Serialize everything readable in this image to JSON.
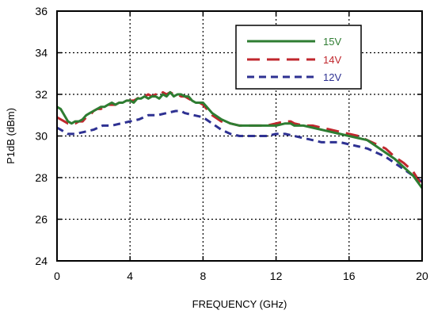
{
  "chart_data": {
    "type": "line",
    "xlabel": "FREQUENCY (GHz)",
    "ylabel": "P1dB (dBm)",
    "xlim": [
      0,
      20
    ],
    "ylim": [
      24,
      36
    ],
    "xticks": [
      0,
      4,
      8,
      12,
      16,
      20
    ],
    "yticks": [
      24,
      26,
      28,
      30,
      32,
      34,
      36
    ],
    "grid": "dotted",
    "legend_position": "top-right",
    "series": [
      {
        "name": "15V",
        "color": "#2e7d32",
        "dash": "solid",
        "x": [
          0,
          0.2,
          0.4,
          0.6,
          0.8,
          1.0,
          1.2,
          1.4,
          1.6,
          1.8,
          2.0,
          2.2,
          2.4,
          2.6,
          2.8,
          3.0,
          3.2,
          3.4,
          3.6,
          3.8,
          4.0,
          4.2,
          4.4,
          4.6,
          4.8,
          5.0,
          5.2,
          5.4,
          5.6,
          5.8,
          6.0,
          6.2,
          6.4,
          6.6,
          6.8,
          7.0,
          7.2,
          7.4,
          7.6,
          7.8,
          8.0,
          8.5,
          9.0,
          9.5,
          10.0,
          10.5,
          11.0,
          11.5,
          12.0,
          12.5,
          12.8,
          13.0,
          13.5,
          14.0,
          14.5,
          15.0,
          15.5,
          16.0,
          16.5,
          17.0,
          17.5,
          18.0,
          18.5,
          19.0,
          19.5,
          20.0
        ],
        "y": [
          31.4,
          31.3,
          31.0,
          30.7,
          30.6,
          30.7,
          30.7,
          30.8,
          31.0,
          31.1,
          31.2,
          31.3,
          31.4,
          31.4,
          31.5,
          31.6,
          31.5,
          31.6,
          31.6,
          31.7,
          31.7,
          31.6,
          31.8,
          31.8,
          31.9,
          31.8,
          31.9,
          31.9,
          31.8,
          32.0,
          31.9,
          32.1,
          31.9,
          32.0,
          32.0,
          31.9,
          31.9,
          31.7,
          31.6,
          31.6,
          31.6,
          31.1,
          30.8,
          30.6,
          30.5,
          30.5,
          30.5,
          30.5,
          30.5,
          30.6,
          30.6,
          30.5,
          30.5,
          30.4,
          30.3,
          30.2,
          30.1,
          30.0,
          29.9,
          29.8,
          29.5,
          29.2,
          28.9,
          28.5,
          28.1,
          27.5
        ]
      },
      {
        "name": "14V",
        "color": "#c0272d",
        "dash": "long-dash",
        "x": [
          0,
          0.2,
          0.4,
          0.6,
          0.8,
          1.0,
          1.2,
          1.4,
          1.6,
          1.8,
          2.0,
          2.2,
          2.4,
          2.6,
          2.8,
          3.0,
          3.2,
          3.4,
          3.6,
          3.8,
          4.0,
          4.2,
          4.4,
          4.6,
          4.8,
          5.0,
          5.2,
          5.4,
          5.6,
          5.8,
          6.0,
          6.2,
          6.4,
          6.6,
          6.8,
          7.0,
          7.2,
          7.4,
          7.6,
          7.8,
          8.0,
          8.5,
          9.0,
          9.5,
          10.0,
          10.5,
          11.0,
          11.5,
          12.0,
          12.5,
          12.8,
          13.0,
          13.5,
          14.0,
          14.5,
          15.0,
          15.5,
          16.0,
          16.5,
          17.0,
          17.5,
          18.0,
          18.5,
          19.0,
          19.5,
          20.0
        ],
        "y": [
          30.9,
          30.8,
          30.7,
          30.6,
          30.6,
          30.6,
          30.7,
          30.7,
          30.9,
          31.0,
          31.2,
          31.3,
          31.3,
          31.4,
          31.5,
          31.5,
          31.5,
          31.6,
          31.6,
          31.7,
          31.7,
          31.7,
          31.8,
          31.9,
          31.9,
          32.0,
          31.9,
          32.0,
          31.9,
          32.1,
          32.0,
          32.1,
          32.0,
          32.0,
          31.9,
          31.9,
          31.8,
          31.7,
          31.6,
          31.6,
          31.5,
          31.0,
          30.7,
          30.6,
          30.5,
          30.5,
          30.5,
          30.5,
          30.6,
          30.7,
          30.7,
          30.6,
          30.5,
          30.5,
          30.4,
          30.3,
          30.2,
          30.1,
          30.0,
          29.8,
          29.6,
          29.4,
          29.0,
          28.7,
          28.3,
          27.6
        ]
      },
      {
        "name": "12V",
        "color": "#2e3192",
        "dash": "short-dash",
        "x": [
          0,
          0.2,
          0.4,
          0.6,
          0.8,
          1.0,
          1.5,
          2.0,
          2.5,
          3.0,
          3.5,
          4.0,
          4.5,
          5.0,
          5.5,
          6.0,
          6.5,
          6.8,
          7.0,
          7.5,
          8.0,
          8.5,
          9.0,
          9.5,
          10.0,
          10.5,
          11.0,
          11.5,
          12.0,
          12.5,
          13.0,
          13.5,
          14.0,
          14.5,
          15.0,
          15.5,
          16.0,
          16.5,
          17.0,
          17.5,
          18.0,
          18.5,
          19.0,
          19.5,
          20.0
        ],
        "y": [
          30.4,
          30.3,
          30.2,
          30.1,
          30.1,
          30.1,
          30.2,
          30.3,
          30.5,
          30.5,
          30.6,
          30.7,
          30.8,
          31.0,
          31.0,
          31.1,
          31.2,
          31.2,
          31.1,
          31.0,
          30.9,
          30.6,
          30.3,
          30.1,
          30.0,
          30.0,
          30.0,
          30.0,
          30.1,
          30.1,
          30.0,
          29.9,
          29.8,
          29.7,
          29.7,
          29.7,
          29.6,
          29.5,
          29.4,
          29.2,
          29.0,
          28.7,
          28.4,
          28.1,
          27.8
        ]
      }
    ]
  }
}
